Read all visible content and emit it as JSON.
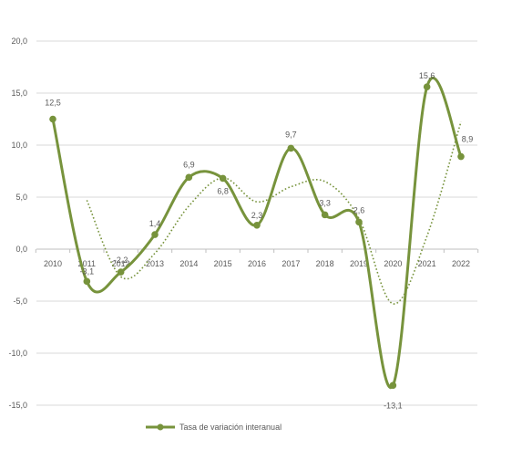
{
  "chart_data": {
    "type": "line",
    "x": [
      "2010",
      "2011",
      "2012",
      "2013",
      "2014",
      "2015",
      "2016",
      "2017",
      "2018",
      "2019",
      "2020",
      "2021",
      "2022"
    ],
    "y_ticks": [
      "20,0",
      "15,0",
      "10,0",
      "5,0",
      "0,0",
      "-5,0",
      "-10,0",
      "-15,0"
    ],
    "ylim": [
      -15,
      20
    ],
    "grid": "horizontal",
    "legend_position": "bottom",
    "series": [
      {
        "name": "Tasa de variación interanual",
        "style": "solid-smooth-markers",
        "color": "#77933c",
        "values": [
          12.5,
          -3.1,
          -2.2,
          1.4,
          6.9,
          6.8,
          2.3,
          9.7,
          3.3,
          2.6,
          -13.1,
          15.6,
          8.9
        ],
        "labels": [
          "12,5",
          "-3,1",
          "-2,2",
          "1,4",
          "6,9",
          "6,8",
          "2,3",
          "9,7",
          "3,3",
          "2,6",
          "-13,1",
          "15,6",
          "8,9"
        ]
      },
      {
        "name": "",
        "style": "dotted-moving-average",
        "color": "#77933c",
        "values": [
          null,
          4.7,
          -2.65,
          -0.4,
          4.15,
          6.85,
          4.55,
          6.0,
          6.5,
          2.95,
          -5.25,
          1.25,
          12.25
        ]
      }
    ]
  }
}
